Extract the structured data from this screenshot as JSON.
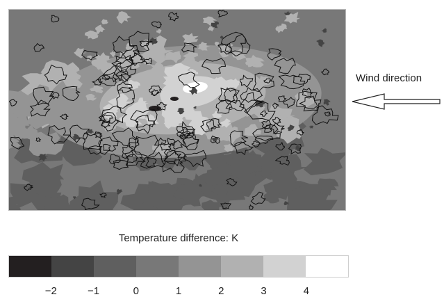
{
  "chart_data": {
    "type": "heatmap",
    "title": "",
    "annotation": "Wind direction",
    "colorbar": {
      "title": "Temperature difference: K",
      "colors": [
        "#231f20",
        "#444444",
        "#5f5f5f",
        "#787878",
        "#949494",
        "#b1b1b1",
        "#d2d2d2",
        "#ffffff"
      ],
      "tick_labels": [
        "−2",
        "−1",
        "0",
        "1",
        "2",
        "3",
        "4"
      ]
    },
    "wind_direction": "east-to-west",
    "contours": true
  }
}
